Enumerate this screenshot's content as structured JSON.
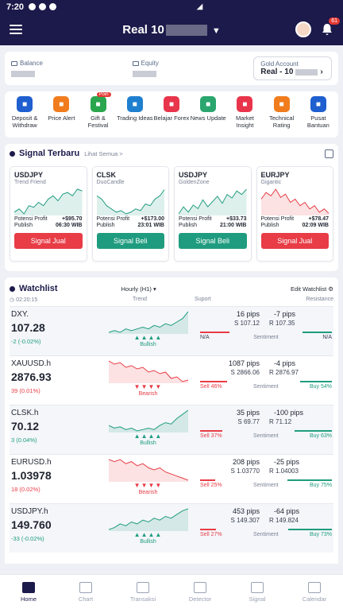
{
  "status_bar": {
    "time": "7:20"
  },
  "header": {
    "title": "Real 10",
    "notification_count": "61"
  },
  "account": {
    "balance_label": "Balance",
    "equity_label": "Equity",
    "gold_account_label": "Gold Account",
    "gold_account_value": "Real - 10"
  },
  "menu": [
    {
      "label": "Deposit & Withdraw",
      "color": "#1f5fcf",
      "icon": "wallet-icon"
    },
    {
      "label": "Price Alert",
      "color": "#f07c1e",
      "icon": "alert-icon"
    },
    {
      "label": "Gift & Festival",
      "color": "#2aa64e",
      "icon": "gift-icon",
      "tag": "Poin"
    },
    {
      "label": "Trading Ideas",
      "color": "#1f7fcf",
      "icon": "chart-icon"
    },
    {
      "label": "Belajar Forex",
      "color": "#e8354b",
      "icon": "book-icon"
    },
    {
      "label": "News Update",
      "color": "#2aa66e",
      "icon": "news-icon"
    },
    {
      "label": "Market Insight",
      "color": "#e8354b",
      "icon": "bars-icon"
    },
    {
      "label": "Technical Rating",
      "color": "#f07c1e",
      "icon": "rating-icon"
    },
    {
      "label": "Pusat Bantuan",
      "color": "#1f5fcf",
      "icon": "headset-icon"
    }
  ],
  "signals": {
    "title": "Signal Terbaru",
    "see_all": "Lihat Semua >",
    "profit_label": "Potensi Profit",
    "publish_label": "Publish",
    "cards": [
      {
        "pair": "USDJPY",
        "strategy": "Trend Friend",
        "profit": "+$95.70",
        "publish": "06:30 WIB",
        "action": "Signal Jual",
        "kind": "sell",
        "line_color": "#1f9c7f",
        "points": [
          10,
          12,
          9,
          14,
          13,
          16,
          14,
          18,
          20,
          17,
          21,
          22,
          20,
          24,
          23
        ]
      },
      {
        "pair": "CLSK",
        "strategy": "DuoCandle",
        "profit": "+$173.00",
        "publish": "23:01 WIB",
        "action": "Signal Beli",
        "kind": "buy",
        "line_color": "#1f9c7f",
        "points": [
          20,
          18,
          14,
          12,
          10,
          11,
          9,
          10,
          12,
          11,
          15,
          14,
          18,
          20,
          24
        ]
      },
      {
        "pair": "USDJPY",
        "strategy": "GoldenZone",
        "profit": "+$33.73",
        "publish": "21:00 WIB",
        "action": "Signal Beli",
        "kind": "buy",
        "line_color": "#1f9c7f",
        "points": [
          10,
          14,
          11,
          15,
          13,
          18,
          14,
          17,
          20,
          16,
          21,
          19,
          23,
          21,
          24
        ]
      },
      {
        "pair": "EURJPY",
        "strategy": "Gigantic",
        "profit": "+$78.47",
        "publish": "02:09 WIB",
        "action": "Signal Jual",
        "kind": "sell",
        "line_color": "#e83c46",
        "points": [
          18,
          22,
          20,
          24,
          19,
          21,
          16,
          18,
          14,
          16,
          12,
          14,
          10,
          12,
          9
        ]
      }
    ]
  },
  "watchlist": {
    "title": "Watchlist",
    "timeframe": "Hourly (H1)",
    "edit_label": "Edit Watchlist",
    "time": "02:20:15",
    "col_trend": "Trend",
    "col_support": "Suport",
    "col_resistance": "Resistance",
    "sentiment_label": "Sentiment",
    "rows": [
      {
        "symbol": "DXY.",
        "price": "107.28",
        "change": "-2 (-0.02%)",
        "change_color": "#1f9c7f",
        "trend": "Bullish",
        "triangles": "▲▲▲▲",
        "trend_color": "#1f9c7f",
        "tri_color": "#1f9c7f",
        "support_pips": "16 pips",
        "res_pips": "-7 pips",
        "support": "S 107.12",
        "resistance": "R 107.35",
        "sell": "N/A",
        "buy": "N/A",
        "sell_pct": 0.5,
        "line_color": "#1f9c7f",
        "points": [
          10,
          11,
          10,
          12,
          11,
          12,
          13,
          12,
          14,
          13,
          15,
          14,
          16,
          18,
          22
        ]
      },
      {
        "symbol": "XAUUSD.h",
        "price": "2876.93",
        "change": "39 (0.01%)",
        "change_color": "#e83c46",
        "trend": "Bearish",
        "triangles": "▼▼▼▼",
        "trend_color": "#e83c46",
        "tri_color": "#e83c46",
        "support_pips": "1087 pips",
        "res_pips": "-4 pips",
        "support": "S 2866.06",
        "resistance": "R 2876.97",
        "sell": "Sell 46%",
        "buy": "Buy 54%",
        "sell_pct": 0.46,
        "line_color": "#e83c46",
        "points": [
          22,
          20,
          21,
          18,
          19,
          17,
          18,
          15,
          16,
          14,
          15,
          11,
          12,
          9,
          10
        ]
      },
      {
        "symbol": "CLSK.h",
        "price": "70.12",
        "change": "3 (0.04%)",
        "change_color": "#1f9c7f",
        "trend": "Bullish",
        "triangles": "▲▲▲▲",
        "trend_color": "#1f9c7f",
        "tri_color": "#1f9c7f",
        "support_pips": "35 pips",
        "res_pips": "-100 pips",
        "support": "S 69.77",
        "resistance": "R 71.12",
        "sell": "Sell 37%",
        "buy": "Buy 63%",
        "sell_pct": 0.37,
        "line_color": "#1f9c7f",
        "points": [
          12,
          10,
          11,
          9,
          10,
          8,
          9,
          10,
          9,
          12,
          14,
          13,
          17,
          20,
          23
        ]
      },
      {
        "symbol": "EURUSD.h",
        "price": "1.03978",
        "change": "18 (0.02%)",
        "change_color": "#e83c46",
        "trend": "Bearish",
        "triangles": "▼▼▼▼",
        "trend_color": "#e83c46",
        "tri_color": "#e83c46",
        "support_pips": "208 pips",
        "res_pips": "-25 pips",
        "support": "S 1.03770",
        "resistance": "R 1.04003",
        "sell": "Sell 25%",
        "buy": "Buy 75%",
        "sell_pct": 0.25,
        "line_color": "#e83c46",
        "points": [
          22,
          21,
          22,
          20,
          21,
          19,
          20,
          18,
          17,
          18,
          16,
          15,
          14,
          13,
          12
        ]
      },
      {
        "symbol": "USDJPY.h",
        "price": "149.760",
        "change": "-33 (-0.02%)",
        "change_color": "#1f9c7f",
        "trend": "Bullish",
        "triangles": "▲▲▲▲",
        "trend_color": "#1f9c7f",
        "tri_color": "#1f9c7f",
        "support_pips": "453 pips",
        "res_pips": "-64 pips",
        "support": "S 149.307",
        "resistance": "R 149.824",
        "sell": "Sell 27%",
        "buy": "Buy 73%",
        "sell_pct": 0.27,
        "line_color": "#1f9c7f",
        "points": [
          10,
          11,
          13,
          12,
          14,
          13,
          15,
          14,
          16,
          15,
          17,
          16,
          18,
          20,
          21
        ]
      }
    ]
  },
  "bottom_nav": [
    {
      "label": "Home",
      "active": true
    },
    {
      "label": "Chart"
    },
    {
      "label": "Transaksi"
    },
    {
      "label": "Detector"
    },
    {
      "label": "Signal"
    },
    {
      "label": "Calendar"
    }
  ]
}
